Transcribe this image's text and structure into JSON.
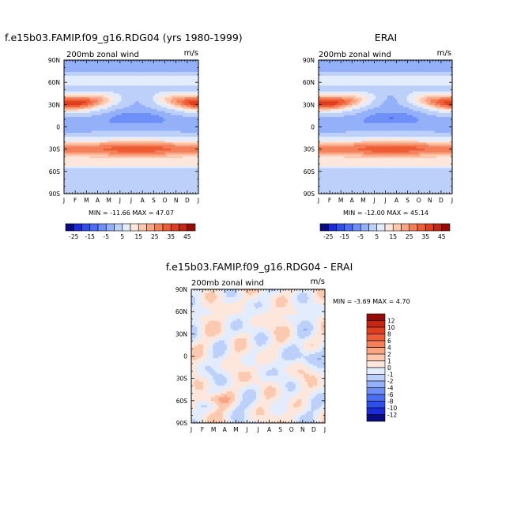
{
  "panels": {
    "model": {
      "title": "f.e15b03.FAMIP.f09_g16.RDG04 (yrs 1980-1999)",
      "subtitle": "200mb zonal wind",
      "units": "m/s",
      "stats": "MIN = -11.66  MAX =  47.07"
    },
    "obs": {
      "title": "ERAI",
      "subtitle": "200mb zonal wind",
      "units": "m/s",
      "stats": "MIN = -12.00  MAX =  45.14"
    },
    "diff": {
      "title": "f.e15b03.FAMIP.f09_g16.RDG04 - ERAI",
      "subtitle": "200mb zonal wind",
      "units": "m/s",
      "stats": "MIN =  -3.69  MAX =   4.70"
    }
  },
  "chart_data": [
    {
      "type": "heatmap",
      "title": "f.e15b03.FAMIP.f09_g16.RDG04 (yrs 1980-1999)",
      "subtitle": "200mb zonal wind",
      "units": "m/s",
      "x_ticks": [
        "J",
        "F",
        "M",
        "A",
        "M",
        "J",
        "J",
        "A",
        "S",
        "O",
        "N",
        "D",
        "J"
      ],
      "y_ticks": [
        "90N",
        "60N",
        "30N",
        "0",
        "30S",
        "60S",
        "90S"
      ],
      "min": -11.66,
      "max": 47.07,
      "levels": [
        -25,
        -20,
        -15,
        -10,
        -5,
        0,
        5,
        10,
        15,
        20,
        25,
        30,
        35,
        40,
        45
      ],
      "colorbar_labels": [
        "-25",
        "-15",
        "-5",
        "5",
        "15",
        "25",
        "35",
        "45"
      ],
      "colors": [
        "#0a0a82",
        "#1b2bd6",
        "#2f4fea",
        "#4b6cf3",
        "#6d8ff7",
        "#93b0f8",
        "#bcd0fa",
        "#e3ecfc",
        "#fde7dc",
        "#fbc9b0",
        "#f8a584",
        "#f4805a",
        "#ee5c35",
        "#dd3f1f",
        "#c32612",
        "#960b05"
      ]
    },
    {
      "type": "heatmap",
      "title": "ERAI",
      "subtitle": "200mb zonal wind",
      "units": "m/s",
      "x_ticks": [
        "J",
        "F",
        "M",
        "A",
        "M",
        "J",
        "J",
        "A",
        "S",
        "O",
        "N",
        "D",
        "J"
      ],
      "y_ticks": [
        "90N",
        "60N",
        "30N",
        "0",
        "30S",
        "60S",
        "90S"
      ],
      "min": -12.0,
      "max": 45.14,
      "levels": [
        -25,
        -20,
        -15,
        -10,
        -5,
        0,
        5,
        10,
        15,
        20,
        25,
        30,
        35,
        40,
        45
      ],
      "colorbar_labels": [
        "-25",
        "-15",
        "-5",
        "5",
        "15",
        "25",
        "35",
        "45"
      ],
      "colors": [
        "#0a0a82",
        "#1b2bd6",
        "#2f4fea",
        "#4b6cf3",
        "#6d8ff7",
        "#93b0f8",
        "#bcd0fa",
        "#e3ecfc",
        "#fde7dc",
        "#fbc9b0",
        "#f8a584",
        "#f4805a",
        "#ee5c35",
        "#dd3f1f",
        "#c32612",
        "#960b05"
      ]
    },
    {
      "type": "heatmap",
      "title": "f.e15b03.FAMIP.f09_g16.RDG04 - ERAI",
      "subtitle": "200mb zonal wind",
      "units": "m/s",
      "x_ticks": [
        "J",
        "F",
        "M",
        "A",
        "M",
        "J",
        "J",
        "A",
        "S",
        "O",
        "N",
        "D",
        "J"
      ],
      "y_ticks": [
        "90N",
        "60N",
        "30N",
        "0",
        "30S",
        "60S",
        "90S"
      ],
      "min": -3.69,
      "max": 4.7,
      "levels": [
        -12,
        -10,
        -8,
        -6,
        -4,
        -2,
        -1,
        0,
        1,
        2,
        4,
        6,
        8,
        10,
        12
      ],
      "colorbar_labels": [
        "-12",
        "-10",
        "-8",
        "-6",
        "-4",
        "-2",
        "-1",
        "0",
        "1",
        "2",
        "4",
        "6",
        "8",
        "10",
        "12"
      ],
      "colors": [
        "#0a0a82",
        "#1b2bd6",
        "#2f4fea",
        "#4b6cf3",
        "#6d8ff7",
        "#93b0f8",
        "#bcd0fa",
        "#e3ecfc",
        "#fde7dc",
        "#fbc9b0",
        "#f8a584",
        "#f4805a",
        "#ee5c35",
        "#dd3f1f",
        "#c32612",
        "#960b05"
      ]
    }
  ]
}
